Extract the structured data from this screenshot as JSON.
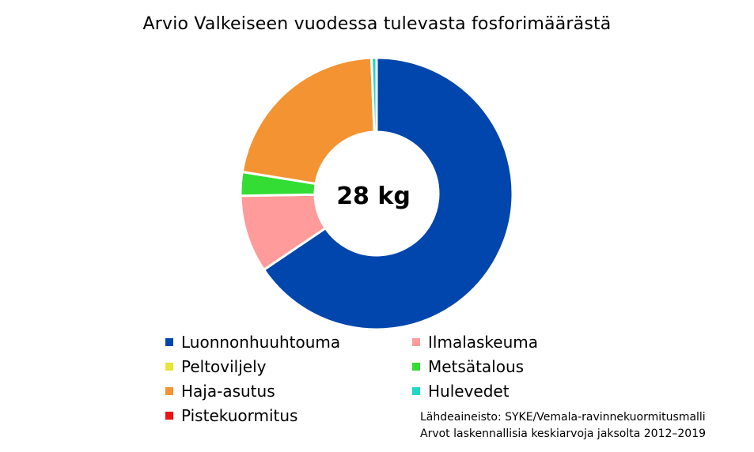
{
  "chart_data": {
    "type": "pie",
    "variant": "donut",
    "title": "Arvio Valkeiseen vuodessa tulevasta fosforimäärästä",
    "center_label": "28 kg",
    "unit": "%",
    "categories": [
      "Luonnonhuuhtouma",
      "Ilmalaskeuma",
      "Peltoviljely",
      "Metsätalous",
      "Haja-asutus",
      "Hulevedet",
      "Pistekuormitus"
    ],
    "values": [
      65.4,
      9.2,
      0,
      2.8,
      21.8,
      0.6,
      0
    ],
    "colors": [
      "#0046AD",
      "#FF9B9B",
      "#E6E639",
      "#33DD33",
      "#F49332",
      "#1DD8C8",
      "#EE1111"
    ],
    "legend_placement": "bottom"
  },
  "source": {
    "line1": "Lähdeaineisto: SYKE/Vemala-ravinnekuormitusmalli",
    "line2": "Arvot laskennallisia keskiarvoja jaksolta 2012–2019"
  }
}
